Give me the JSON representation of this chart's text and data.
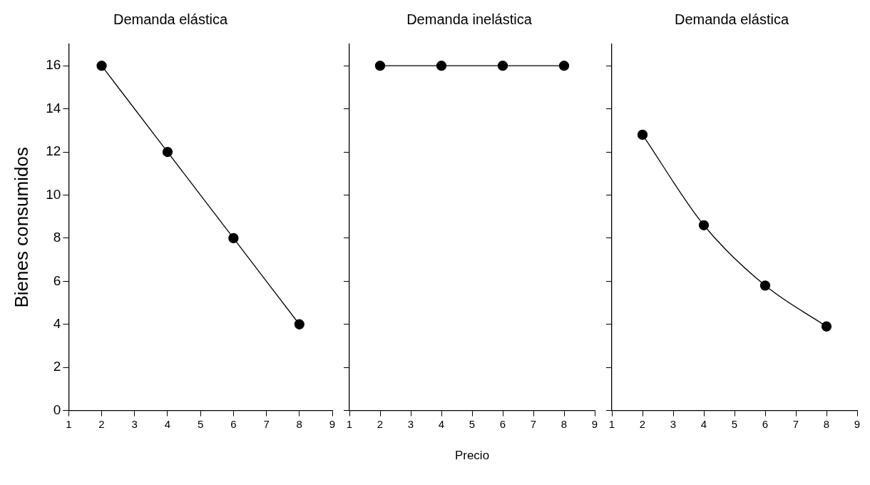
{
  "chart_data": [
    {
      "type": "line",
      "title": "Demanda elástica",
      "ylabel": "Bienes consumidos",
      "x": [
        2,
        4,
        6,
        8
      ],
      "series": [
        {
          "color": "#000000",
          "values": [
            16,
            12,
            8,
            4
          ]
        }
      ],
      "xlim": [
        1,
        9
      ],
      "xticks": [
        1,
        2,
        3,
        4,
        5,
        6,
        7,
        8,
        9
      ],
      "ylim": [
        0,
        17
      ],
      "yticks": [
        0,
        2,
        4,
        6,
        8,
        10,
        12,
        14,
        16
      ],
      "marker": "circle",
      "line_style": "solid",
      "grid": false,
      "legend": false
    },
    {
      "type": "line",
      "title": "Demanda inelástica",
      "xlabel": "Precio",
      "x": [
        2,
        4,
        6,
        8
      ],
      "series": [
        {
          "color": "#000000",
          "values": [
            16,
            16,
            16,
            16
          ]
        }
      ],
      "xlim": [
        1,
        9
      ],
      "xticks": [
        1,
        2,
        3,
        4,
        5,
        6,
        7,
        8,
        9
      ],
      "ylim": [
        0,
        17
      ],
      "yticks": [
        0,
        2,
        4,
        6,
        8,
        10,
        12,
        14,
        16
      ],
      "marker": "circle",
      "line_style": "solid",
      "grid": false,
      "legend": false,
      "tick_labels": "x"
    },
    {
      "type": "line",
      "title": "Demanda elástica",
      "x": [
        2,
        4,
        6,
        8
      ],
      "series": [
        {
          "color": "#000000",
          "values": [
            12.8,
            8.6,
            5.8,
            3.9
          ]
        }
      ],
      "xlim": [
        1,
        9
      ],
      "xticks": [
        1,
        2,
        3,
        4,
        5,
        6,
        7,
        8,
        9
      ],
      "ylim": [
        0,
        17
      ],
      "yticks": [
        0,
        2,
        4,
        6,
        8,
        10,
        12,
        14,
        16
      ],
      "marker": "circle",
      "line_style": "solid",
      "grid": false,
      "legend": false,
      "tick_labels": "x"
    }
  ]
}
